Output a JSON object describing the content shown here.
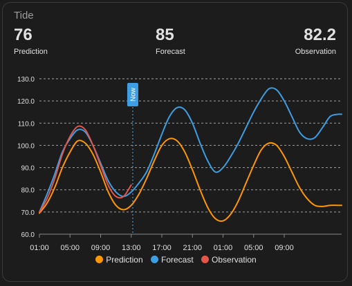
{
  "card": {
    "title": "Tide",
    "stats": [
      {
        "value": "76",
        "label": "Prediction"
      },
      {
        "value": "85",
        "label": "Forecast"
      },
      {
        "value": "82.2",
        "label": "Observation"
      }
    ]
  },
  "chart_data": {
    "type": "line",
    "title": "",
    "xlabel": "",
    "ylabel": "",
    "x_ticks": [
      "01:00",
      "05:00",
      "09:00",
      "13:00",
      "17:00",
      "21:00",
      "01:00",
      "05:00",
      "09:00"
    ],
    "x_range_hours": [
      0,
      39.5
    ],
    "y_ticks": [
      "60.0",
      "70.0",
      "80.0",
      "90.0",
      "100.0",
      "110.0",
      "120.0",
      "130.0"
    ],
    "ylim": [
      60,
      130
    ],
    "grid": "horizontal-dashed",
    "now_marker": {
      "label": "Now",
      "hour": 12.2
    },
    "legend_position": "bottom",
    "series": [
      {
        "name": "Prediction",
        "color": "#ff9800",
        "x": [
          0,
          1,
          2,
          3,
          4,
          5,
          6,
          7,
          8,
          9,
          10,
          11,
          12,
          13,
          14,
          15,
          16,
          17,
          18,
          19,
          20,
          21,
          22,
          23,
          24,
          25,
          26,
          27,
          28,
          29,
          30,
          31,
          32,
          33,
          34,
          35,
          36,
          37,
          38,
          39,
          39.5
        ],
        "values": [
          69.5,
          74,
          81,
          90,
          97,
          102,
          101,
          96,
          88,
          79,
          73,
          71,
          73,
          78,
          85,
          93,
          100,
          103,
          102,
          97,
          89,
          80,
          72,
          67,
          66,
          69,
          75,
          83,
          91,
          98,
          101,
          100,
          95,
          88,
          81,
          76,
          73,
          72.5,
          73,
          73,
          73
        ]
      },
      {
        "name": "Forecast",
        "color": "#3d9ee3",
        "x": [
          0,
          1,
          2,
          3,
          4,
          5,
          6,
          7,
          8,
          9,
          10,
          11,
          12,
          13,
          14,
          15,
          16,
          17,
          18,
          19,
          20,
          21,
          22,
          23,
          24,
          25,
          26,
          27,
          28,
          29,
          30,
          31,
          32,
          33,
          34,
          35,
          36,
          37,
          38,
          39,
          39.5
        ],
        "values": [
          70,
          78,
          87,
          97,
          103,
          107,
          106,
          100,
          92,
          84,
          79,
          77,
          79,
          83,
          88,
          96,
          105,
          113,
          117,
          116,
          110,
          101,
          93,
          88,
          90,
          95,
          101,
          108,
          115,
          121,
          125.5,
          125,
          120,
          113,
          106,
          103,
          103.5,
          108,
          113,
          114,
          114
        ]
      },
      {
        "name": "Observation",
        "color": "#e45649",
        "x": [
          0,
          1,
          2,
          3,
          4,
          5,
          6,
          7,
          8,
          9,
          10,
          11,
          12
        ],
        "values": [
          70,
          76,
          85,
          96,
          104,
          108.5,
          107,
          100,
          91,
          82,
          77,
          77,
          82.2
        ]
      }
    ]
  }
}
